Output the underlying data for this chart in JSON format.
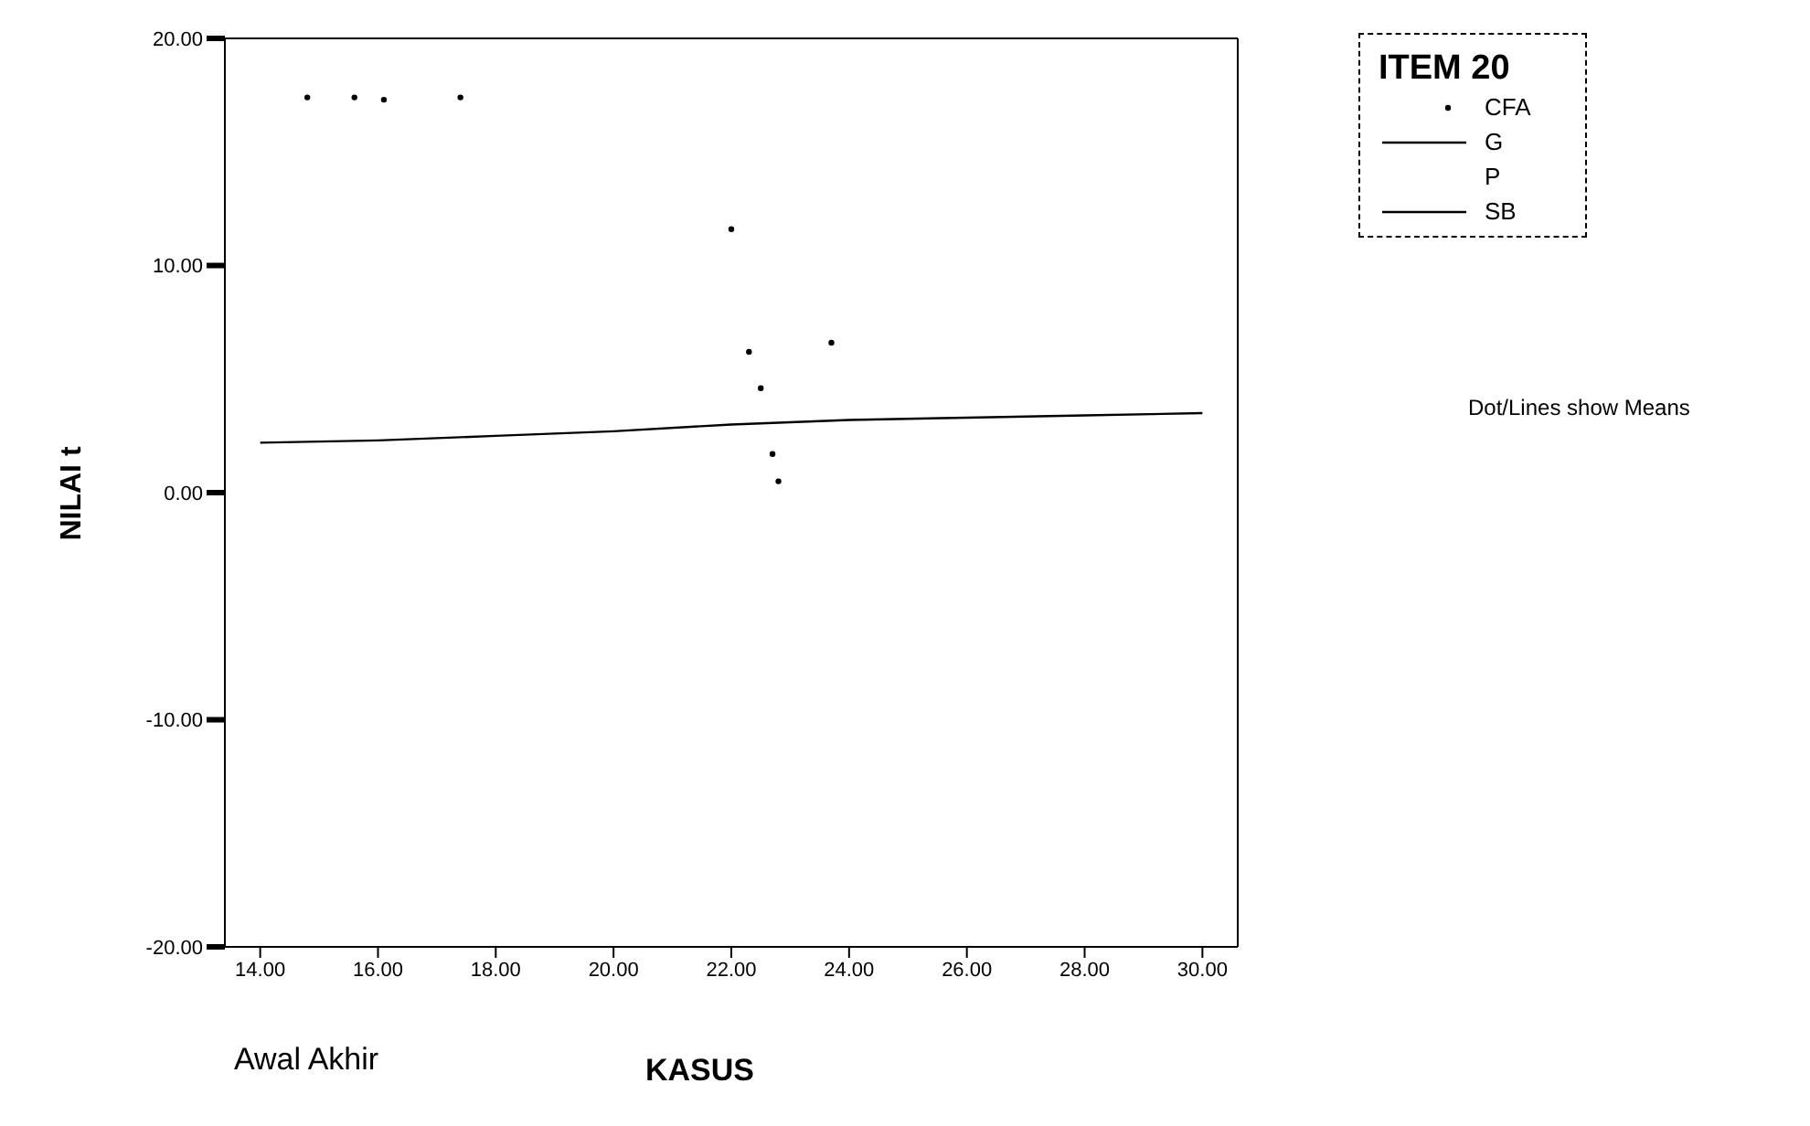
{
  "chart_data": {
    "type": "line",
    "xlabel": "KASUS",
    "ylabel": "NILAI t",
    "legend_title": "ITEM 20",
    "legend": "top right",
    "xlim": [
      13.4,
      30.6
    ],
    "xticks": [
      {
        "value": 14,
        "label": "14.00"
      },
      {
        "value": 16,
        "label": "16.00"
      },
      {
        "value": 18,
        "label": "18.00"
      },
      {
        "value": 20,
        "label": "20.00"
      },
      {
        "value": 22,
        "label": "22.00"
      },
      {
        "value": 24,
        "label": "24.00"
      },
      {
        "value": 26,
        "label": "26.00"
      },
      {
        "value": 28,
        "label": "28.00"
      },
      {
        "value": 30,
        "label": "30.00"
      }
    ],
    "ylim": [
      -20,
      20
    ],
    "yticks": [
      {
        "value": -20,
        "label": "-20.00"
      },
      {
        "value": -10,
        "label": "-10.00"
      },
      {
        "value": 0,
        "label": "0.00"
      },
      {
        "value": 10,
        "label": "10.00"
      },
      {
        "value": 20,
        "label": "20.00"
      }
    ],
    "series": [
      {
        "name": "CFA",
        "type": "scatter",
        "marker": "circle",
        "color": "#000000",
        "x": [
          14.8,
          15.6,
          16.1,
          17.4,
          22.0,
          22.3,
          23.7,
          22.5,
          22.7,
          22.8
        ],
        "values": [
          17.4,
          17.4,
          17.3,
          17.4,
          11.6,
          6.2,
          6.6,
          4.6,
          1.7,
          0.5
        ]
      },
      {
        "name": "G",
        "line_style": "solid",
        "color": "#000000"
      },
      {
        "name": "P",
        "type": "scatter",
        "marker": "none",
        "color": "#000000"
      },
      {
        "name": "SB",
        "type": "line",
        "line_style": "solid",
        "color": "#000000",
        "x": [
          14,
          16,
          18,
          20,
          22,
          24,
          26,
          28,
          30
        ],
        "values": [
          2.2,
          2.3,
          2.5,
          2.7,
          3.0,
          3.2,
          3.3,
          3.4,
          3.5
        ]
      }
    ],
    "annotations": [
      "Awal Akhir",
      "Dot/Lines show Means"
    ]
  }
}
